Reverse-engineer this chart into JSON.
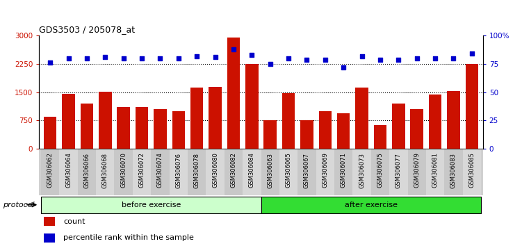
{
  "title": "GDS3503 / 205078_at",
  "categories": [
    "GSM306062",
    "GSM306064",
    "GSM306066",
    "GSM306068",
    "GSM306070",
    "GSM306072",
    "GSM306074",
    "GSM306076",
    "GSM306078",
    "GSM306080",
    "GSM306082",
    "GSM306084",
    "GSM306063",
    "GSM306065",
    "GSM306067",
    "GSM306069",
    "GSM306071",
    "GSM306073",
    "GSM306075",
    "GSM306077",
    "GSM306079",
    "GSM306081",
    "GSM306083",
    "GSM306085"
  ],
  "counts": [
    850,
    1450,
    1200,
    1520,
    1100,
    1100,
    1050,
    1000,
    1620,
    1650,
    2950,
    2250,
    750,
    1480,
    750,
    1000,
    950,
    1620,
    630,
    1200,
    1050,
    1440,
    1530,
    2250
  ],
  "percentiles": [
    76,
    80,
    80,
    81,
    80,
    80,
    80,
    80,
    82,
    81,
    88,
    83,
    75,
    80,
    79,
    79,
    72,
    82,
    79,
    79,
    80,
    80,
    80,
    84
  ],
  "bar_color": "#cc1100",
  "dot_color": "#0000cc",
  "before_count": 12,
  "after_count": 12,
  "before_label": "before exercise",
  "after_label": "after exercise",
  "before_bg": "#ccffcc",
  "after_bg": "#33dd33",
  "protocol_label": "protocol",
  "legend_count_label": "count",
  "legend_pct_label": "percentile rank within the sample",
  "ylim_left": [
    0,
    3000
  ],
  "ylim_right": [
    0,
    100
  ],
  "yticks_left": [
    0,
    750,
    1500,
    2250,
    3000
  ],
  "yticks_right": [
    0,
    25,
    50,
    75,
    100
  ],
  "ytick_labels_left": [
    "0",
    "750",
    "1500",
    "2250",
    "3000"
  ],
  "ytick_labels_right": [
    "0",
    "25",
    "50",
    "75",
    "100%"
  ],
  "hlines": [
    750,
    1500,
    2250
  ],
  "xlabel_bg": "#d0d0d0",
  "background_color": "#ffffff"
}
